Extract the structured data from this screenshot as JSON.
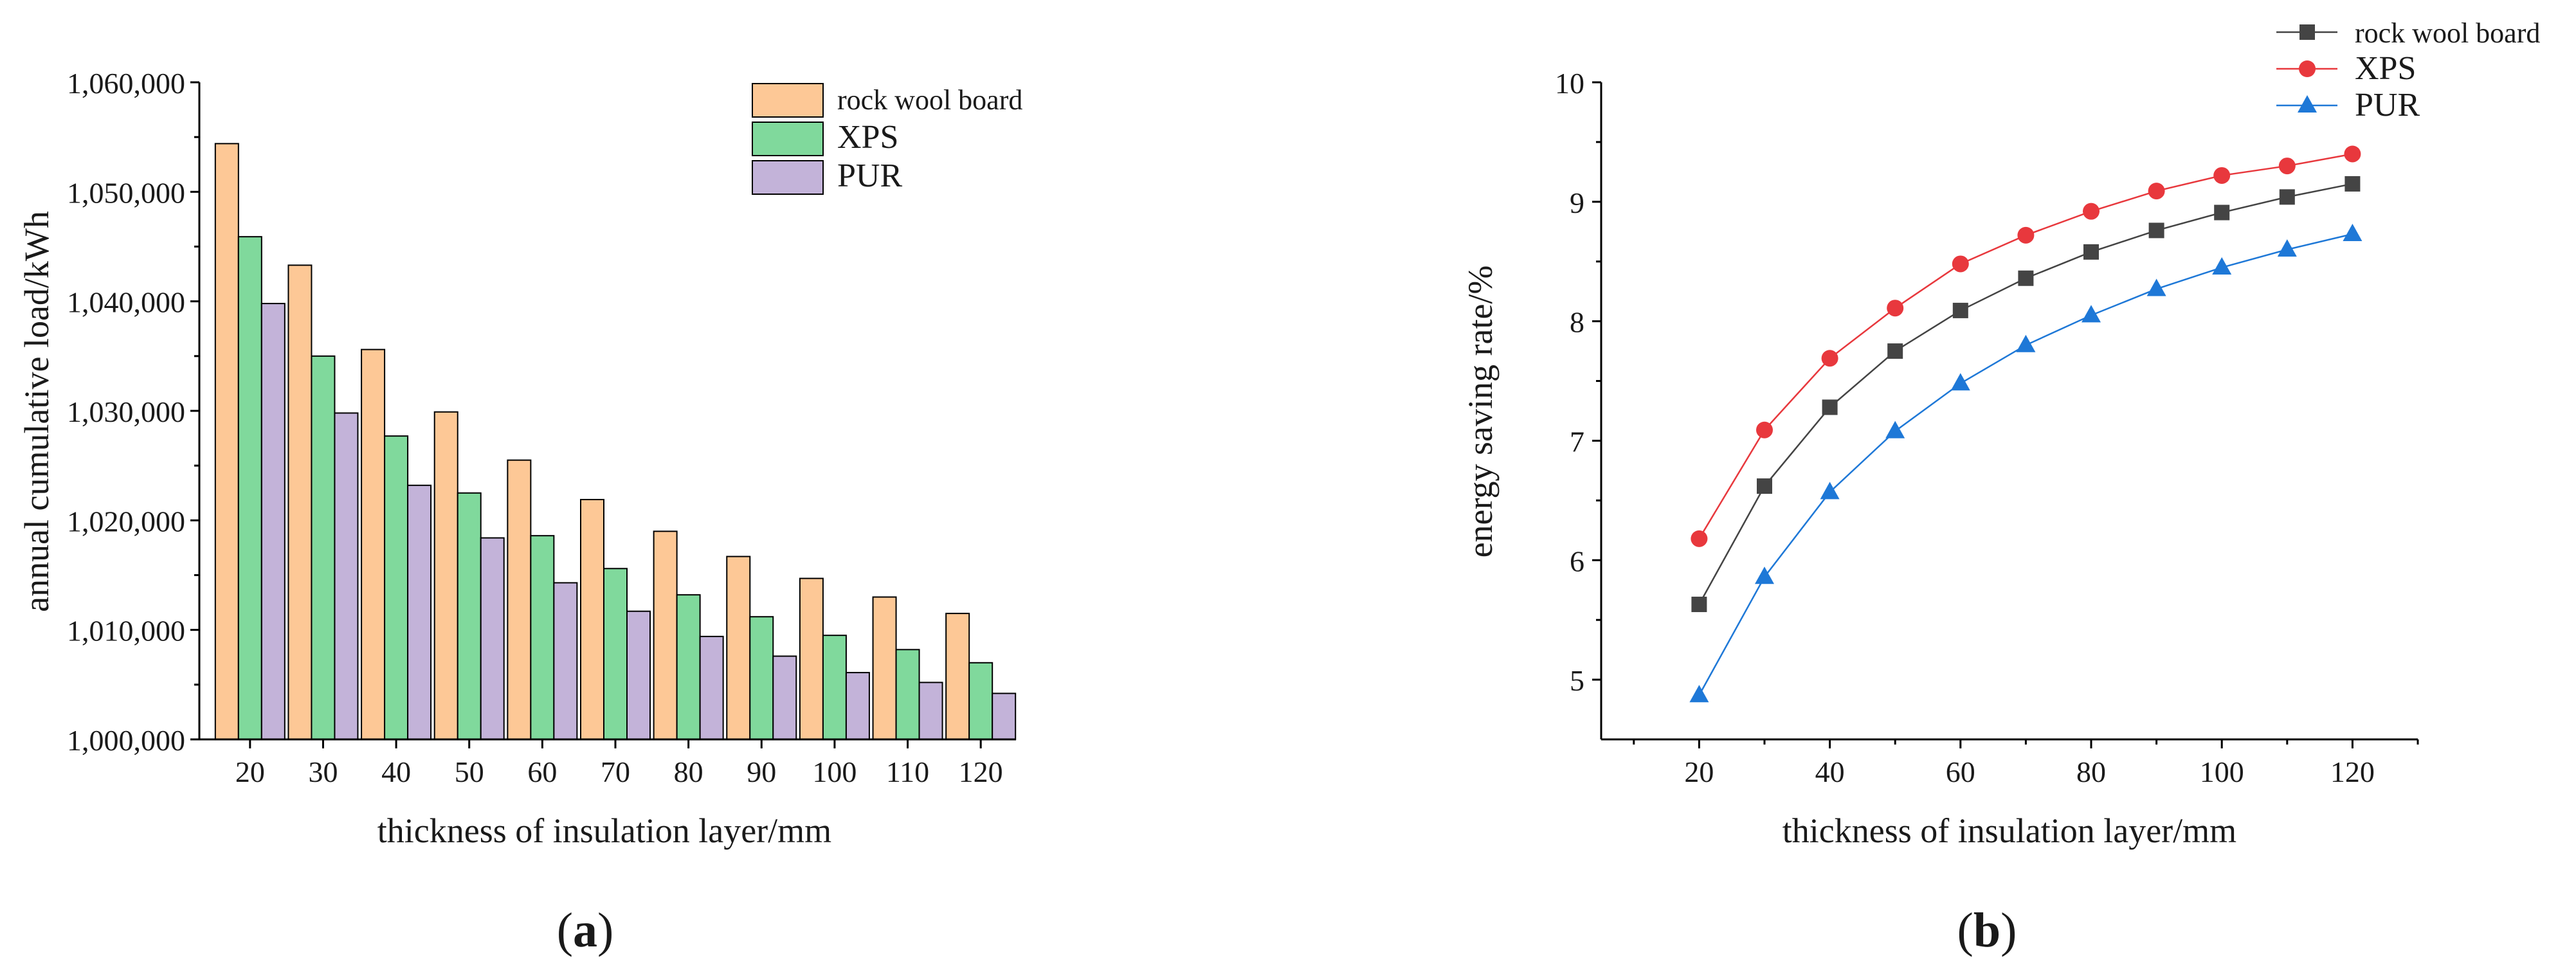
{
  "chart_data": [
    {
      "type": "bar",
      "panel_label": "a",
      "xlabel": "thickness of insulation layer/mm",
      "ylabel": "annual cumulative load/kWh",
      "categories": [
        "20",
        "30",
        "40",
        "50",
        "60",
        "70",
        "80",
        "90",
        "100",
        "110",
        "120"
      ],
      "ylim": [
        1000000,
        1060000
      ],
      "yticks": [
        1000000,
        1010000,
        1020000,
        1030000,
        1040000,
        1050000,
        1060000
      ],
      "ytick_labels": [
        "1,000,000",
        "1,010,000",
        "1,020,000",
        "1,030,000",
        "1,040,000",
        "1,050,000",
        "1,060,000"
      ],
      "legend_position": "top-right",
      "series": [
        {
          "name": "rock wool board",
          "color": "#FDC896",
          "values": [
            1054400,
            1043300,
            1035600,
            1029900,
            1025500,
            1021900,
            1019000,
            1016700,
            1014700,
            1013000,
            1011500
          ]
        },
        {
          "name": "XPS",
          "color": "#80D99C",
          "values": [
            1045900,
            1035000,
            1027700,
            1022500,
            1018600,
            1015600,
            1013200,
            1011200,
            1009500,
            1008200,
            1007000
          ]
        },
        {
          "name": "PUR",
          "color": "#C3B3D9",
          "values": [
            1039800,
            1029800,
            1023200,
            1018400,
            1014300,
            1011700,
            1009400,
            1007600,
            1006100,
            1005200,
            1004200
          ]
        }
      ]
    },
    {
      "type": "line",
      "panel_label": "b",
      "xlabel": "thickness of insulation layer/mm",
      "ylabel": "energy saving rate/%",
      "x": [
        20,
        30,
        40,
        50,
        60,
        70,
        80,
        90,
        100,
        110,
        120
      ],
      "xlim": [
        5,
        130
      ],
      "xticks": [
        20,
        40,
        60,
        80,
        100,
        120
      ],
      "ylim": [
        4.5,
        10
      ],
      "yticks": [
        5,
        6,
        7,
        8,
        9,
        10
      ],
      "legend_position": "top-right",
      "series": [
        {
          "name": "rock wool board",
          "color": "#444444",
          "marker": "square",
          "values": [
            5.63,
            6.62,
            7.28,
            7.75,
            8.09,
            8.36,
            8.58,
            8.76,
            8.91,
            9.04,
            9.15
          ]
        },
        {
          "name": "XPS",
          "color": "#E8383D",
          "marker": "circle",
          "values": [
            6.18,
            7.09,
            7.69,
            8.11,
            8.48,
            8.72,
            8.92,
            9.09,
            9.22,
            9.3,
            9.4
          ]
        },
        {
          "name": "PUR",
          "color": "#1E78D7",
          "marker": "triangle",
          "values": [
            4.87,
            5.86,
            6.57,
            7.08,
            7.48,
            7.8,
            8.05,
            8.27,
            8.45,
            8.6,
            8.73
          ]
        }
      ]
    }
  ]
}
